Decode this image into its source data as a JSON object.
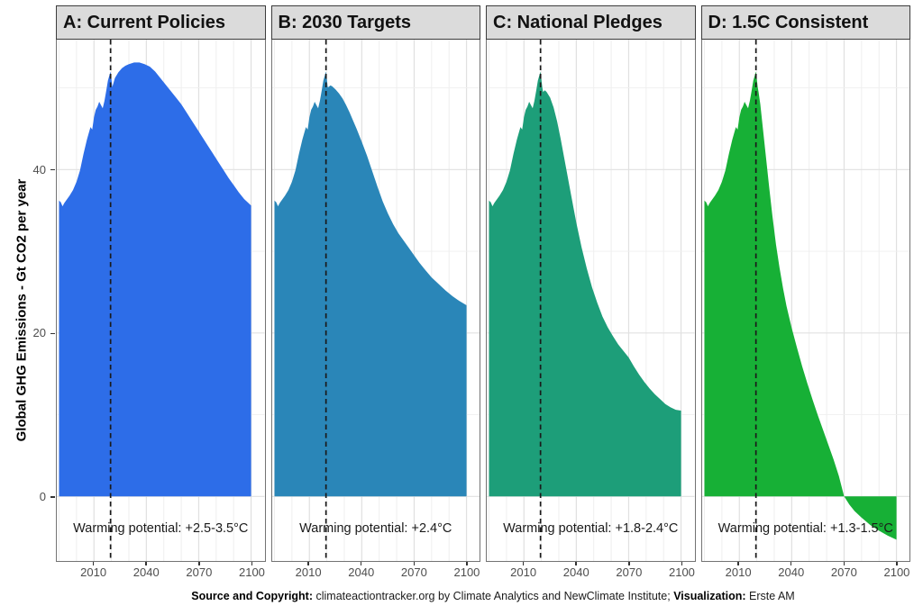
{
  "figure": {
    "y_axis_title": "Global GHG Emissions - Gt CO2 per year",
    "caption": {
      "source_label": "Source and Copyright:",
      "source_text": " climateactiontracker.org by Climate Analytics and NewClimate Institute; ",
      "viz_label": "Visualization:",
      "viz_text": " Erste AM"
    }
  },
  "chart_data": {
    "type": "area",
    "title": "",
    "xlabel": "",
    "ylabel": "Global GHG Emissions - Gt CO2 per year",
    "unit": "Gt CO2 per year",
    "grid": true,
    "x_ticks": [
      2010,
      2040,
      2070,
      2100
    ],
    "y_ticks": [
      40,
      20,
      0
    ],
    "y_major": [
      0,
      20,
      40
    ],
    "y_minor": [
      10,
      30,
      50
    ],
    "x_grid": [
      1990,
      2000,
      2010,
      2020,
      2030,
      2040,
      2050,
      2060,
      2070,
      2080,
      2090,
      2100
    ],
    "xlim": [
      1988.7,
      2107.7
    ],
    "ylim": [
      -7.9,
      55.9
    ],
    "vline_year": 2019.5,
    "vline_style": "dashed",
    "history_note": "shared observed emissions 1990-2020, Gt CO2 per year",
    "history": [
      [
        1990,
        36.2
      ],
      [
        1991,
        36.0
      ],
      [
        1992,
        35.5
      ],
      [
        1993,
        35.9
      ],
      [
        1994,
        36.2
      ],
      [
        1996,
        36.8
      ],
      [
        1998,
        37.5
      ],
      [
        2000,
        38.5
      ],
      [
        2002,
        39.9
      ],
      [
        2004,
        41.9
      ],
      [
        2006,
        43.7
      ],
      [
        2008,
        45.2
      ],
      [
        2009,
        44.9
      ],
      [
        2010,
        46.4
      ],
      [
        2011,
        47.3
      ],
      [
        2012,
        47.7
      ],
      [
        2013,
        48.3
      ],
      [
        2014,
        47.9
      ],
      [
        2015,
        47.5
      ],
      [
        2016,
        48.4
      ],
      [
        2017,
        49.6
      ],
      [
        2018,
        50.9
      ],
      [
        2019.5,
        52.0
      ],
      [
        2020.5,
        50.1
      ]
    ],
    "facets": [
      {
        "label": "A: Current Policies",
        "color": "#2D6DE8",
        "annotation": "Warming potential: +2.5-3.5°C",
        "projection": [
          [
            2022,
            51.2
          ],
          [
            2024,
            51.9
          ],
          [
            2026,
            52.4
          ],
          [
            2028,
            52.7
          ],
          [
            2030,
            52.9
          ],
          [
            2033,
            53.1
          ],
          [
            2036,
            53.1
          ],
          [
            2039,
            52.9
          ],
          [
            2042,
            52.6
          ],
          [
            2045,
            52.0
          ],
          [
            2048,
            51.2
          ],
          [
            2051,
            50.4
          ],
          [
            2054,
            49.6
          ],
          [
            2057,
            48.8
          ],
          [
            2060,
            48.0
          ],
          [
            2063,
            47.0
          ],
          [
            2066,
            46.0
          ],
          [
            2069,
            45.0
          ],
          [
            2072,
            44.0
          ],
          [
            2075,
            43.0
          ],
          [
            2078,
            42.0
          ],
          [
            2081,
            41.0
          ],
          [
            2084,
            40.0
          ],
          [
            2087,
            39.0
          ],
          [
            2090,
            38.1
          ],
          [
            2093,
            37.2
          ],
          [
            2096,
            36.4
          ],
          [
            2100,
            35.6
          ]
        ]
      },
      {
        "label": "B: 2030 Targets",
        "color": "#2A86B8",
        "annotation": "Warming potential: +2.4°C",
        "projection": [
          [
            2021,
            50.1
          ],
          [
            2022,
            50.3
          ],
          [
            2023,
            50.2
          ],
          [
            2025,
            49.8
          ],
          [
            2027,
            49.3
          ],
          [
            2029,
            48.7
          ],
          [
            2031,
            47.9
          ],
          [
            2033,
            47.0
          ],
          [
            2035,
            46.0
          ],
          [
            2037,
            45.0
          ],
          [
            2040,
            43.4
          ],
          [
            2043,
            41.7
          ],
          [
            2046,
            39.8
          ],
          [
            2049,
            37.9
          ],
          [
            2052,
            36.1
          ],
          [
            2055,
            34.6
          ],
          [
            2058,
            33.3
          ],
          [
            2061,
            32.2
          ],
          [
            2064,
            31.3
          ],
          [
            2067,
            30.4
          ],
          [
            2070,
            29.5
          ],
          [
            2073,
            28.6
          ],
          [
            2076,
            27.8
          ],
          [
            2080,
            26.8
          ],
          [
            2084,
            26.0
          ],
          [
            2088,
            25.2
          ],
          [
            2092,
            24.5
          ],
          [
            2096,
            23.9
          ],
          [
            2100,
            23.4
          ]
        ]
      },
      {
        "label": "C: National Pledges",
        "color": "#1D9E79",
        "annotation": "Warming potential: +1.8-2.4°C",
        "projection": [
          [
            2021,
            49.5
          ],
          [
            2022,
            49.7
          ],
          [
            2023,
            49.5
          ],
          [
            2025,
            48.8
          ],
          [
            2027,
            47.6
          ],
          [
            2029,
            45.9
          ],
          [
            2031,
            43.8
          ],
          [
            2033,
            41.5
          ],
          [
            2035,
            39.2
          ],
          [
            2037,
            36.9
          ],
          [
            2040,
            33.5
          ],
          [
            2043,
            30.5
          ],
          [
            2046,
            27.9
          ],
          [
            2049,
            25.6
          ],
          [
            2052,
            23.7
          ],
          [
            2055,
            22.0
          ],
          [
            2058,
            20.7
          ],
          [
            2061,
            19.6
          ],
          [
            2064,
            18.6
          ],
          [
            2067,
            17.8
          ],
          [
            2070,
            17.0
          ],
          [
            2073,
            15.9
          ],
          [
            2076,
            14.9
          ],
          [
            2079,
            14.0
          ],
          [
            2082,
            13.2
          ],
          [
            2085,
            12.5
          ],
          [
            2088,
            11.9
          ],
          [
            2091,
            11.3
          ],
          [
            2094,
            10.9
          ],
          [
            2097,
            10.6
          ],
          [
            2100,
            10.5
          ]
        ]
      },
      {
        "label": "D: 1.5C Consistent",
        "color": "#17B036",
        "annotation": "Warming potential: +1.3-1.5°C",
        "projection": [
          [
            2021,
            49.5
          ],
          [
            2022,
            48.0
          ],
          [
            2023,
            46.0
          ],
          [
            2025,
            42.0
          ],
          [
            2027,
            38.0
          ],
          [
            2029,
            34.2
          ],
          [
            2031,
            30.8
          ],
          [
            2033,
            28.0
          ],
          [
            2035,
            25.5
          ],
          [
            2037,
            23.3
          ],
          [
            2040,
            20.6
          ],
          [
            2043,
            18.2
          ],
          [
            2046,
            15.9
          ],
          [
            2049,
            13.8
          ],
          [
            2052,
            11.8
          ],
          [
            2055,
            9.9
          ],
          [
            2058,
            8.1
          ],
          [
            2061,
            6.3
          ],
          [
            2064,
            4.5
          ],
          [
            2067,
            2.5
          ],
          [
            2070,
            0.0
          ],
          [
            2073,
            -1.0
          ],
          [
            2076,
            -1.8
          ],
          [
            2080,
            -2.6
          ],
          [
            2085,
            -3.5
          ],
          [
            2090,
            -4.2
          ],
          [
            2095,
            -4.8
          ],
          [
            2100,
            -5.3
          ]
        ]
      }
    ]
  }
}
